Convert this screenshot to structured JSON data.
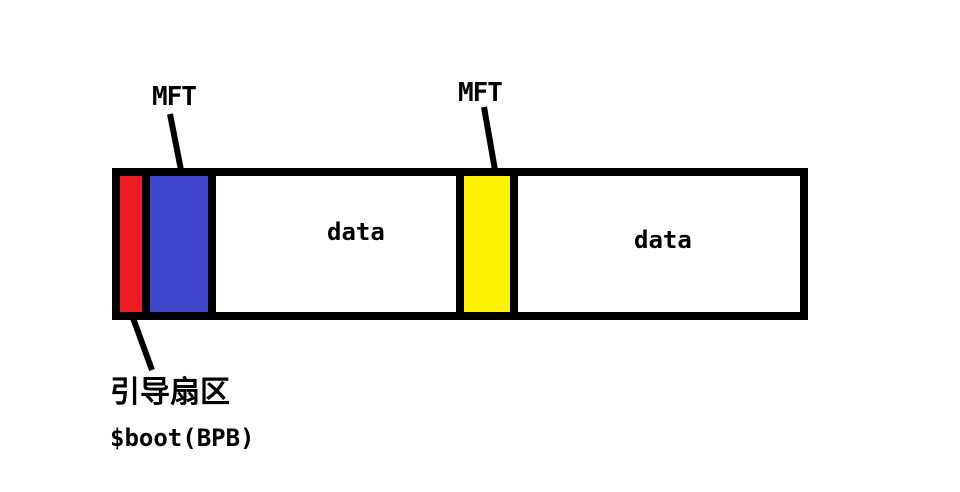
{
  "labels": {
    "mft_primary": "MFT",
    "mft_mirror": "MFT",
    "data_1": "data",
    "data_2": "data",
    "boot_sector_cn": "引导扇区",
    "boot_sector_en": "$boot(BPB)"
  },
  "colors": {
    "outline": "#000000",
    "boot_sector": "#ee1d24",
    "mft_primary": "#3f48cc",
    "mft_mirror": "#fff200",
    "data": "#ffffff",
    "background": "#ffffff"
  }
}
